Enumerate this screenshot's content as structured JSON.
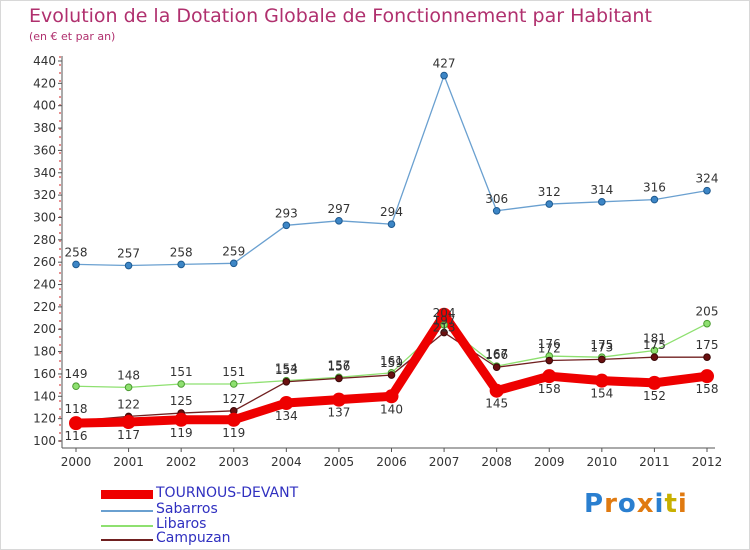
{
  "header": {
    "title": "Evolution de la Dotation Globale de Fonctionnement par Habitant",
    "subtitle": "(en € et par an)"
  },
  "brand": "Proxiti",
  "chart_data": {
    "type": "line",
    "title": "Evolution de la Dotation Globale de Fonctionnement par Habitant",
    "subtitle": "(en € et par an)",
    "xlabel": "",
    "ylabel": "",
    "categories": [
      "2000",
      "2001",
      "2002",
      "2003",
      "2004",
      "2005",
      "2006",
      "2007",
      "2008",
      "2009",
      "2010",
      "2011",
      "2012"
    ],
    "ylim": [
      100,
      440
    ],
    "ytick_step": 20,
    "yticks": [
      "100",
      "120",
      "140",
      "160",
      "180",
      "200",
      "220",
      "240",
      "260",
      "280",
      "300",
      "320",
      "340",
      "360",
      "380",
      "400",
      "420",
      "440"
    ],
    "grid": false,
    "legend_position": "bottom-left",
    "series": [
      {
        "name": "TOURNOUS-DEVANT",
        "color": "#ee0000",
        "values": [
          116,
          117,
          119,
          119,
          134,
          137,
          140,
          213,
          145,
          158,
          154,
          152,
          158
        ]
      },
      {
        "name": "Sabarros",
        "color": "#6aa0d0",
        "values": [
          258,
          257,
          258,
          259,
          293,
          297,
          294,
          427,
          306,
          312,
          314,
          316,
          324
        ]
      },
      {
        "name": "Libaros",
        "color": "#8ee070",
        "values": [
          149,
          148,
          151,
          151,
          154,
          157,
          161,
          204,
          167,
          176,
          175,
          181,
          205
        ]
      },
      {
        "name": "Campuzan",
        "color": "#702020",
        "values": [
          118,
          122,
          125,
          127,
          153,
          156,
          159,
          197,
          166,
          172,
          173,
          175,
          175
        ]
      }
    ]
  }
}
